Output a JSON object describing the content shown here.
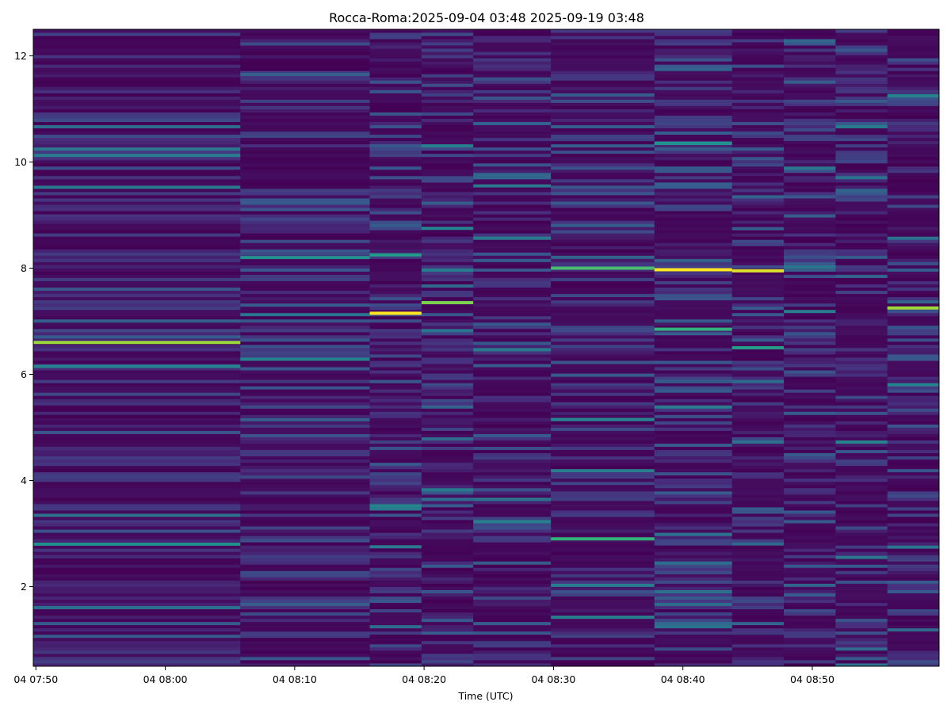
{
  "chart_data": {
    "type": "heatmap",
    "title": "Rocca-Roma:2025-09-04 03:48 2025-09-19 03:48",
    "xlabel": "Time (UTC)",
    "ylabel": "",
    "x_ticks": [
      "04 07:50",
      "04 08:00",
      "04 08:10",
      "04 08:20",
      "04 08:30",
      "04 08:40",
      "04 08:50"
    ],
    "x_tick_minutes": [
      470,
      480,
      490,
      500,
      510,
      520,
      530
    ],
    "xlim_minutes": [
      469.8,
      539.8
    ],
    "y_ticks": [
      2,
      4,
      6,
      8,
      10,
      12
    ],
    "ylim": [
      0.5,
      12.5
    ],
    "colormap": "viridis",
    "colormap_stops": [
      "#440154",
      "#472f7d",
      "#3b518b",
      "#2c718e",
      "#21918c",
      "#27ad81",
      "#5ec962",
      "#aadc32",
      "#fde725"
    ],
    "column_boundaries_minutes": [
      469.8,
      485.8,
      495.8,
      499.8,
      503.8,
      509.8,
      517.8,
      523.8,
      527.8,
      531.8,
      535.8,
      539.8
    ],
    "highlights": [
      {
        "x_minutes": [
          469.8,
          485.8
        ],
        "y": 6.6,
        "value": 0.85
      },
      {
        "x_minutes": [
          469.8,
          485.8
        ],
        "y": 2.8,
        "value": 0.5
      },
      {
        "x_minutes": [
          469.8,
          485.8
        ],
        "y": 6.15,
        "value": 0.45
      },
      {
        "x_minutes": [
          485.8,
          495.8
        ],
        "y": 8.2,
        "value": 0.5
      },
      {
        "x_minutes": [
          485.8,
          495.8
        ],
        "y": 11.65,
        "value": 0.3
      },
      {
        "x_minutes": [
          495.8,
          499.8
        ],
        "y": 7.15,
        "value": 1.0
      },
      {
        "x_minutes": [
          495.8,
          499.8
        ],
        "y": 8.25,
        "value": 0.55
      },
      {
        "x_minutes": [
          495.8,
          499.8
        ],
        "y": 2.75,
        "value": 0.4
      },
      {
        "x_minutes": [
          499.8,
          503.8
        ],
        "y": 7.35,
        "value": 0.8
      },
      {
        "x_minutes": [
          499.8,
          503.8
        ],
        "y": 8.75,
        "value": 0.45
      },
      {
        "x_minutes": [
          503.8,
          509.8
        ],
        "y": 9.55,
        "value": 0.4
      },
      {
        "x_minutes": [
          509.8,
          517.8
        ],
        "y": 8.0,
        "value": 0.7
      },
      {
        "x_minutes": [
          509.8,
          517.8
        ],
        "y": 2.9,
        "value": 0.65
      },
      {
        "x_minutes": [
          509.8,
          517.8
        ],
        "y": 5.15,
        "value": 0.45
      },
      {
        "x_minutes": [
          517.8,
          523.8
        ],
        "y": 7.97,
        "value": 1.0
      },
      {
        "x_minutes": [
          517.8,
          523.8
        ],
        "y": 6.85,
        "value": 0.65
      },
      {
        "x_minutes": [
          517.8,
          523.8
        ],
        "y": 10.35,
        "value": 0.5
      },
      {
        "x_minutes": [
          523.8,
          527.8
        ],
        "y": 7.95,
        "value": 0.95
      },
      {
        "x_minutes": [
          523.8,
          527.8
        ],
        "y": 6.5,
        "value": 0.55
      },
      {
        "x_minutes": [
          531.8,
          535.8
        ],
        "y": 2.55,
        "value": 0.4
      },
      {
        "x_minutes": [
          535.8,
          539.8
        ],
        "y": 7.25,
        "value": 0.85
      },
      {
        "x_minutes": [
          535.8,
          539.8
        ],
        "y": 11.25,
        "value": 0.45
      }
    ]
  }
}
